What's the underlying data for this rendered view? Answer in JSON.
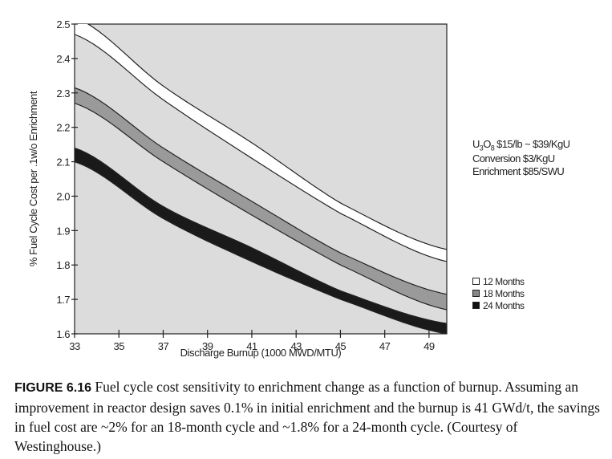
{
  "chart_data": {
    "type": "area",
    "title": "",
    "xlabel": "Discharge Burnup (1000 MWD/MTU)",
    "ylabel": "% Fuel Cycle Cost per .1w/o Enrichment",
    "xlim": [
      33,
      49.8
    ],
    "ylim": [
      1.6,
      2.5
    ],
    "xticks": [
      "33",
      "35",
      "37",
      "39",
      "41",
      "43",
      "45",
      "47",
      "49"
    ],
    "yticks": [
      "1.6",
      "1.7",
      "1.8",
      "1.9",
      "2.0",
      "2.1",
      "2.2",
      "2.3",
      "2.4",
      "2.5"
    ],
    "grid": false,
    "legend_position": "right",
    "x": [
      33,
      37,
      41,
      45,
      49.8
    ],
    "series": [
      {
        "name": "12 Months",
        "color": "#ffffff",
        "upper": [
          2.52,
          2.32,
          2.155,
          1.98,
          1.845
        ],
        "lower": [
          2.47,
          2.28,
          2.11,
          1.95,
          1.81
        ]
      },
      {
        "name": "18 Months",
        "color": "#9a9a9a",
        "upper": [
          2.315,
          2.14,
          1.985,
          1.835,
          1.715
        ],
        "lower": [
          2.27,
          2.1,
          1.945,
          1.8,
          1.67
        ]
      },
      {
        "name": "24 Months",
        "color": "#1a1a1a",
        "upper": [
          2.14,
          1.97,
          1.85,
          1.725,
          1.63
        ],
        "lower": [
          2.1,
          1.935,
          1.81,
          1.7,
          1.6
        ]
      }
    ],
    "background_color": "#dcdcdc",
    "annotations": [
      "U3O8 $15/lb  ~ $39/KgU",
      "Conversion $3/KgU",
      "Enrichment $85/SWU"
    ]
  },
  "notes": {
    "u3o8_prefix": "U",
    "u3o8_sub1": "3",
    "u3o8_mid": "O",
    "u3o8_sub2": "8",
    "u3o8_rest": " $15/lb  ~ $39/KgU",
    "conversion": "Conversion $3/KgU",
    "enrichment": "Enrichment $85/SWU"
  },
  "caption": {
    "label": "FIGURE 6.16",
    "text": "Fuel cycle cost sensitivity to enrichment change as a function of burnup. Assuming an improvement in reactor design saves 0.1% in initial enrichment and the burnup is 41 GWd/t, the savings in fuel cost are ~2% for an 18-month cycle and ~1.8% for a 24-month cycle. (Courtesy of Westinghouse.)"
  }
}
